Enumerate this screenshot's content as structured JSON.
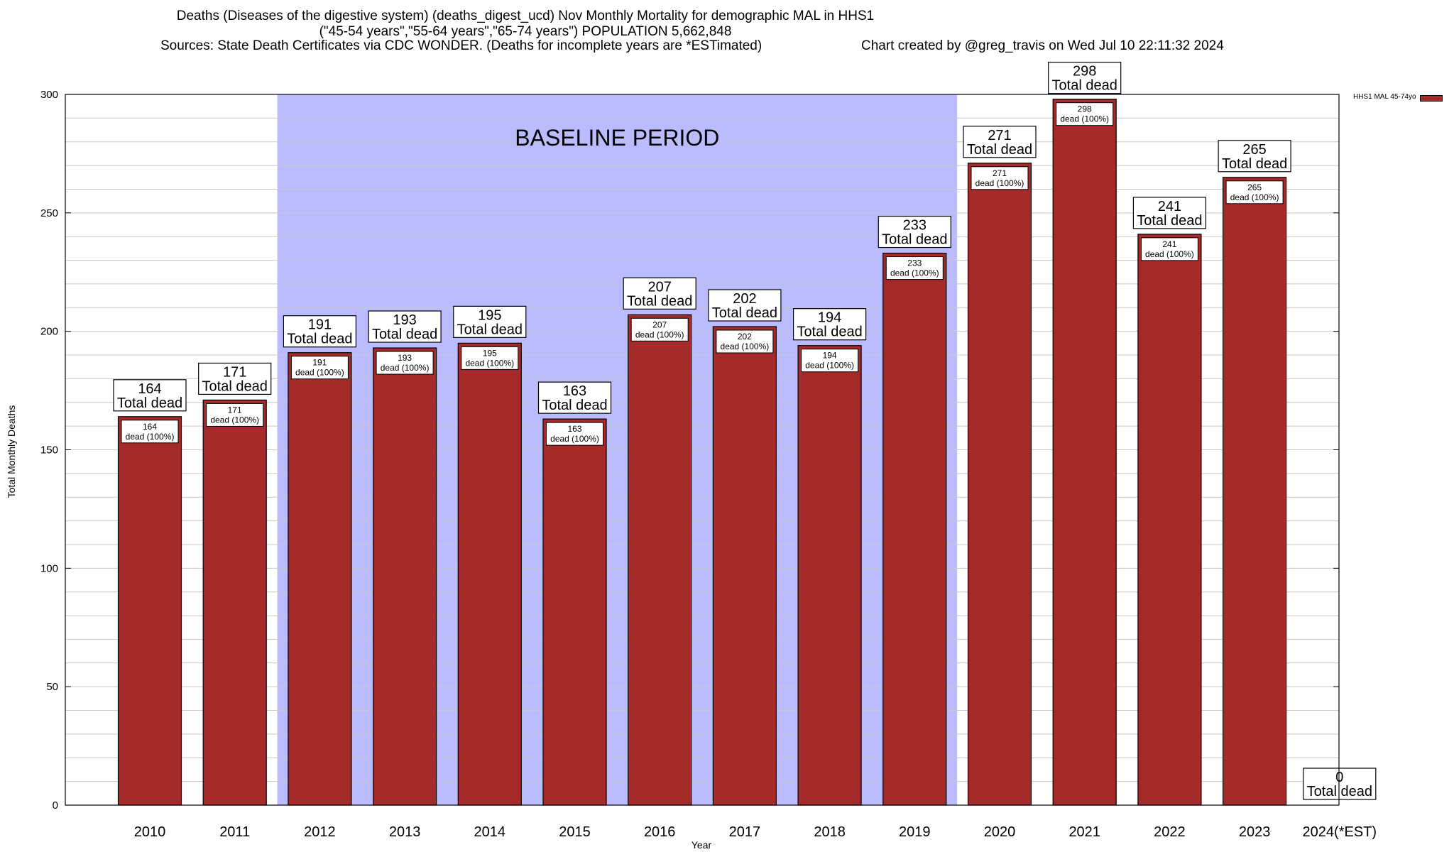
{
  "title": {
    "line1": "Deaths (Diseases of the digestive system) (deaths_digest_ucd) Nov Monthly Mortality for demographic MAL in HHS1",
    "line2": "(\"45-54 years\",\"55-64 years\",\"65-74 years\") POPULATION 5,662,848",
    "sources": "Sources: State Death Certificates via CDC WONDER. (Deaths for incomplete years are *ESTimated)",
    "credit": "Chart created by @greg_travis on Wed Jul 10 22:11:32 2024"
  },
  "legend": {
    "label": "HHS1 MAL 45-74yo",
    "color": "#a52a2a"
  },
  "colors": {
    "bar": "#a52a2a",
    "baseline_shade": "#bbbbff",
    "grid": "#c8c8c8"
  },
  "chart_data": {
    "type": "bar",
    "xlabel": "Year",
    "ylabel": "Total Monthly Deaths",
    "ylim": [
      0,
      300
    ],
    "yticks": [
      0,
      50,
      100,
      150,
      200,
      250,
      300
    ],
    "minor_grid_step": 10,
    "grid": true,
    "legend_position": "top-right",
    "categories": [
      "2010",
      "2011",
      "2012",
      "2013",
      "2014",
      "2015",
      "2016",
      "2017",
      "2018",
      "2019",
      "2020",
      "2021",
      "2022",
      "2023",
      "2024(*EST)"
    ],
    "series": [
      {
        "name": "HHS1 MAL 45-74yo",
        "values": [
          164,
          171,
          191,
          193,
          195,
          163,
          207,
          202,
          194,
          233,
          271,
          298,
          241,
          265,
          0
        ]
      }
    ],
    "outer_label_text": "Total dead",
    "inner_label_text": "dead (100%)",
    "baseline": {
      "label": "BASELINE PERIOD",
      "from": "2012",
      "to": "2019"
    }
  }
}
